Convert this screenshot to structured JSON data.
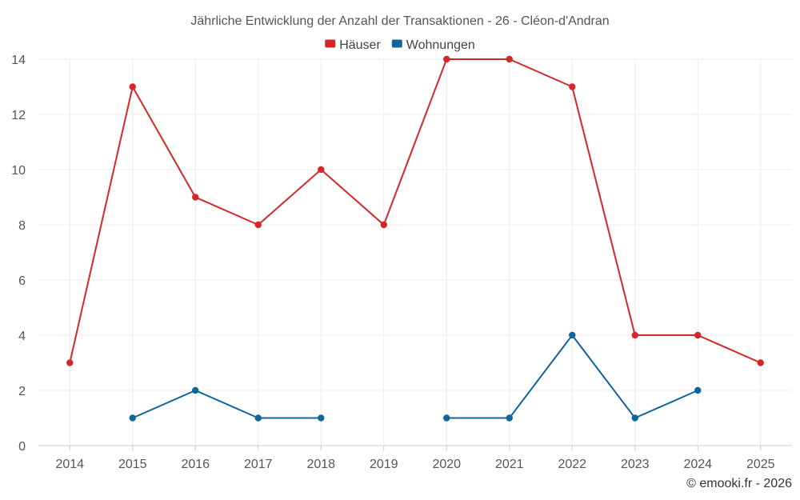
{
  "chart_data": {
    "type": "line",
    "title": "Jährliche Entwicklung der Anzahl der Transaktionen - 26 - Cléon-d'Andran",
    "xlabel": "",
    "ylabel": "",
    "categories": [
      "2014",
      "2015",
      "2016",
      "2017",
      "2018",
      "2019",
      "2020",
      "2021",
      "2022",
      "2023",
      "2024",
      "2025"
    ],
    "ylim": [
      0,
      14
    ],
    "yticks": [
      0,
      2,
      4,
      6,
      8,
      10,
      12,
      14
    ],
    "grid": true,
    "legend_position": "top",
    "series": [
      {
        "name": "Häuser",
        "color": "#d62728",
        "values": [
          3,
          13,
          9,
          8,
          10,
          8,
          14,
          14,
          13,
          4,
          4,
          3
        ]
      },
      {
        "name": "Wohnungen",
        "color": "#0e6699",
        "values": [
          null,
          1,
          2,
          1,
          1,
          null,
          1,
          1,
          4,
          1,
          2,
          null
        ]
      }
    ],
    "credit": "© emooki.fr - 2026"
  }
}
